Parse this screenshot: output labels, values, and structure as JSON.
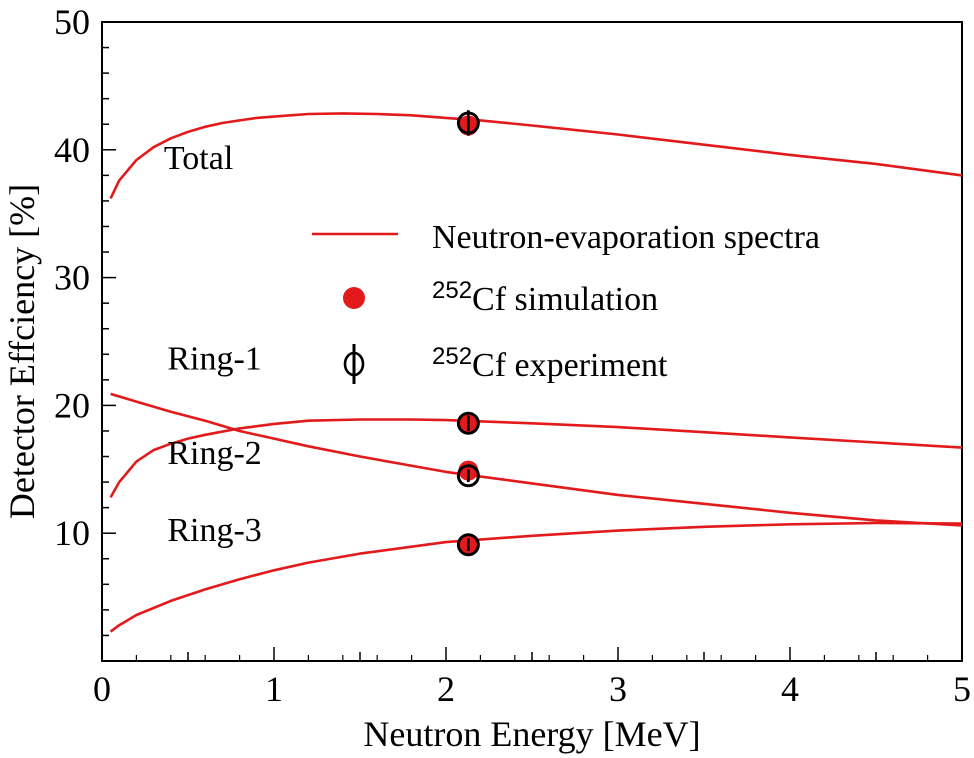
{
  "chart_data": {
    "type": "line",
    "xlabel": "Neutron Energy [MeV]",
    "ylabel": "Detector Effciency [%]",
    "xlim": [
      0,
      5
    ],
    "ylim": [
      0,
      50
    ],
    "x_ticks": [
      "0",
      "1",
      "2",
      "3",
      "4",
      "5"
    ],
    "y_ticks": [
      "10",
      "20",
      "30",
      "40",
      "50"
    ],
    "grid": false,
    "colors": {
      "curve": "#e31a1c",
      "marker": "#e31a1c",
      "experiment": "#000000"
    },
    "legend": {
      "placement": "center-right",
      "entries": [
        {
          "marker": "line",
          "text": "Neutron-evaporation spectra"
        },
        {
          "marker": "filled-circle",
          "sup": "252",
          "text": "Cf simulation"
        },
        {
          "marker": "open-circle-errorbar",
          "sup": "252",
          "text": "Cf experiment"
        }
      ]
    },
    "series": [
      {
        "name": "Total",
        "x": [
          0.05,
          0.1,
          0.2,
          0.3,
          0.4,
          0.5,
          0.6,
          0.7,
          0.8,
          0.9,
          1.0,
          1.2,
          1.4,
          1.6,
          1.8,
          2.0,
          2.2,
          2.5,
          3.0,
          3.5,
          4.0,
          4.5,
          5.0
        ],
        "y": [
          36.2,
          37.6,
          39.2,
          40.2,
          40.9,
          41.4,
          41.8,
          42.1,
          42.3,
          42.5,
          42.6,
          42.8,
          42.85,
          42.8,
          42.7,
          42.5,
          42.3,
          41.9,
          41.2,
          40.4,
          39.6,
          38.9,
          38.0
        ]
      },
      {
        "name": "Ring-1",
        "x": [
          0.05,
          0.1,
          0.2,
          0.3,
          0.4,
          0.5,
          0.6,
          0.8,
          1.0,
          1.2,
          1.5,
          1.8,
          2.0,
          2.5,
          3.0,
          3.5,
          4.0,
          4.5,
          5.0
        ],
        "y": [
          12.8,
          14.0,
          15.6,
          16.5,
          17.0,
          17.4,
          17.7,
          18.2,
          18.55,
          18.8,
          18.9,
          18.9,
          18.85,
          18.6,
          18.3,
          17.9,
          17.5,
          17.1,
          16.7
        ]
      },
      {
        "name": "Ring-2",
        "x": [
          0.05,
          0.2,
          0.4,
          0.6,
          0.8,
          1.0,
          1.2,
          1.5,
          2.0,
          2.5,
          3.0,
          3.5,
          4.0,
          4.5,
          5.0
        ],
        "y": [
          20.9,
          20.3,
          19.5,
          18.8,
          18.0,
          17.4,
          16.8,
          16.0,
          14.8,
          13.9,
          13.0,
          12.3,
          11.6,
          11.0,
          10.6
        ]
      },
      {
        "name": "Ring-3",
        "x": [
          0.05,
          0.1,
          0.2,
          0.4,
          0.6,
          0.8,
          1.0,
          1.2,
          1.5,
          2.0,
          2.5,
          3.0,
          3.5,
          4.0,
          4.5,
          5.0
        ],
        "y": [
          2.3,
          2.8,
          3.6,
          4.7,
          5.6,
          6.4,
          7.1,
          7.7,
          8.4,
          9.3,
          9.8,
          10.2,
          10.5,
          10.7,
          10.8,
          10.75
        ]
      }
    ],
    "simulation_points": [
      {
        "series": "Total",
        "x": 2.13,
        "y": 41.9
      },
      {
        "series": "Ring-1",
        "x": 2.13,
        "y": 18.6
      },
      {
        "series": "Ring-2",
        "x": 2.13,
        "y": 14.9
      },
      {
        "series": "Ring-3",
        "x": 2.13,
        "y": 9.2
      }
    ],
    "experiment_points": [
      {
        "series": "Total",
        "x": 2.13,
        "y": 42.1,
        "err": 1.0
      },
      {
        "series": "Ring-1",
        "x": 2.13,
        "y": 18.6,
        "err": 0.6
      },
      {
        "series": "Ring-2",
        "x": 2.13,
        "y": 14.5,
        "err": 0.5
      },
      {
        "series": "Ring-3",
        "x": 2.13,
        "y": 9.1,
        "err": 0.5
      }
    ],
    "annotations": [
      {
        "text": "Total",
        "x": 0.36,
        "y": 38.5
      },
      {
        "text": "Ring-1",
        "x": 0.38,
        "y": 22.8
      },
      {
        "text": "Ring-2",
        "x": 0.38,
        "y": 15.4
      },
      {
        "text": "Ring-3",
        "x": 0.38,
        "y": 9.4
      }
    ]
  }
}
